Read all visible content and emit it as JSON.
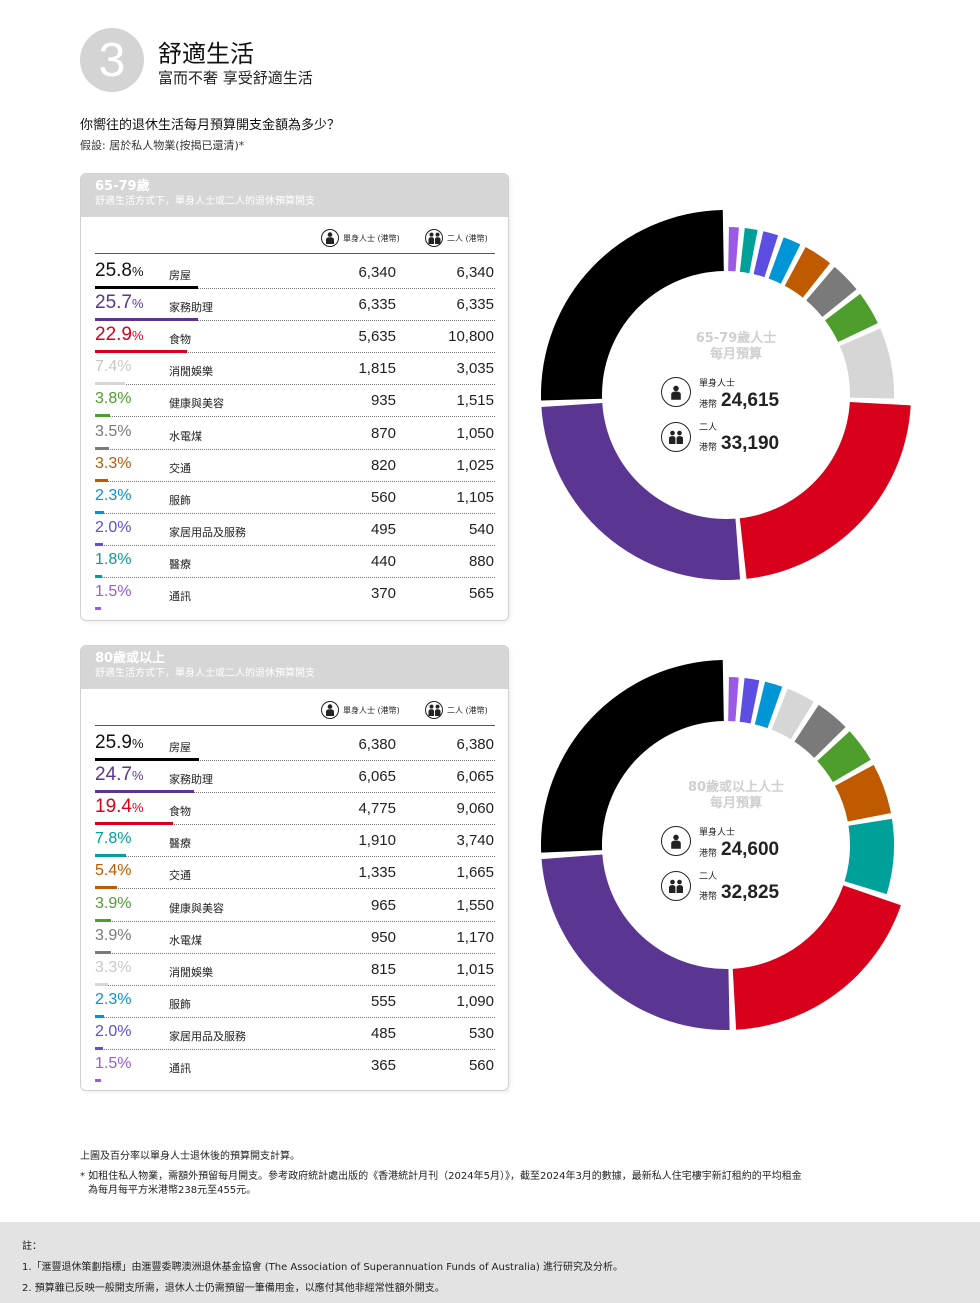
{
  "header": {
    "number": "3",
    "title": "舒適生活",
    "subtitle": "富而不奢 享受舒適生活"
  },
  "question": "你嚮往的退休生活每月預算開支金額為多少？",
  "assumption": "假設: 居於私人物業(按揭已還清)*",
  "column_headers": {
    "single": "單身人士 (港幣)",
    "couple": "二人 (港幣)"
  },
  "tables": [
    {
      "age": "65-79歲",
      "desc": "舒適生活方式下，單身人士或二人的退休預算開支",
      "rows": [
        {
          "pct": "25.8",
          "label": "房屋",
          "single": "6,340",
          "couple": "6,340",
          "color": "#000000",
          "frac": 0.258
        },
        {
          "pct": "25.7",
          "label": "家務助理",
          "single": "6,335",
          "couple": "6,335",
          "color": "#5a3591",
          "frac": 0.257
        },
        {
          "pct": "22.9",
          "label": "食物",
          "single": "5,635",
          "couple": "10,800",
          "color": "#d9001b",
          "frac": 0.229
        },
        {
          "pct": "7.4%",
          "label": "消閒娛樂",
          "single": "1,815",
          "couple": "3,035",
          "color": "#d6d6d6",
          "frac": 0.074
        },
        {
          "pct": "3.8%",
          "label": "健康與美容",
          "single": "935",
          "couple": "1,515",
          "color": "#4e9e2e",
          "frac": 0.038
        },
        {
          "pct": "3.5%",
          "label": "水電煤",
          "single": "870",
          "couple": "1,050",
          "color": "#7a7a7a",
          "frac": 0.035
        },
        {
          "pct": "3.3%",
          "label": "交通",
          "single": "820",
          "couple": "1,025",
          "color": "#c05a00",
          "frac": 0.033
        },
        {
          "pct": "2.3%",
          "label": "服飾",
          "single": "560",
          "couple": "1,105",
          "color": "#0096d6",
          "frac": 0.023
        },
        {
          "pct": "2.0%",
          "label": "家居用品及服務",
          "single": "495",
          "couple": "540",
          "color": "#5c4ee0",
          "frac": 0.02
        },
        {
          "pct": "1.8%",
          "label": "醫療",
          "single": "440",
          "couple": "880",
          "color": "#00a09a",
          "frac": 0.018
        },
        {
          "pct": "1.5%",
          "label": "通訊",
          "single": "370",
          "couple": "565",
          "color": "#9b59e6",
          "frac": 0.015
        }
      ]
    },
    {
      "age": "80歲或以上",
      "desc": "舒適生活方式下，單身人士或二人的退休預算開支",
      "rows": [
        {
          "pct": "25.9",
          "label": "房屋",
          "single": "6,380",
          "couple": "6,380",
          "color": "#000000",
          "frac": 0.259
        },
        {
          "pct": "24.7",
          "label": "家務助理",
          "single": "6,065",
          "couple": "6,065",
          "color": "#5a3591",
          "frac": 0.247
        },
        {
          "pct": "19.4",
          "label": "食物",
          "single": "4,775",
          "couple": "9,060",
          "color": "#d9001b",
          "frac": 0.194
        },
        {
          "pct": "7.8%",
          "label": "醫療",
          "single": "1,910",
          "couple": "3,740",
          "color": "#00a09a",
          "frac": 0.078
        },
        {
          "pct": "5.4%",
          "label": "交通",
          "single": "1,335",
          "couple": "1,665",
          "color": "#c05a00",
          "frac": 0.054
        },
        {
          "pct": "3.9%",
          "label": "健康與美容",
          "single": "965",
          "couple": "1,550",
          "color": "#4e9e2e",
          "frac": 0.039
        },
        {
          "pct": "3.9%",
          "label": "水電煤",
          "single": "950",
          "couple": "1,170",
          "color": "#7a7a7a",
          "frac": 0.039
        },
        {
          "pct": "3.3%",
          "label": "消閒娛樂",
          "single": "815",
          "couple": "1,015",
          "color": "#d6d6d6",
          "frac": 0.033
        },
        {
          "pct": "2.3%",
          "label": "服飾",
          "single": "555",
          "couple": "1,090",
          "color": "#0096d6",
          "frac": 0.023
        },
        {
          "pct": "2.0%",
          "label": "家居用品及服務",
          "single": "485",
          "couple": "530",
          "color": "#5c4ee0",
          "frac": 0.02
        },
        {
          "pct": "1.5%",
          "label": "通訊",
          "single": "365",
          "couple": "560",
          "color": "#9b59e6",
          "frac": 0.015
        }
      ]
    }
  ],
  "donuts": [
    {
      "title_line1": "65-79歲人士",
      "title_line2": "每月預算",
      "single_label": "單身人士",
      "couple_label": "二人",
      "currency": "港幣",
      "single_total": "24,615",
      "couple_total": "33,190"
    },
    {
      "title_line1": "80歲或以上人士",
      "title_line2": "每月預算",
      "single_label": "單身人士",
      "couple_label": "二人",
      "currency": "港幣",
      "single_total": "24,600",
      "couple_total": "32,825"
    }
  ],
  "chart_data": [
    {
      "type": "pie",
      "title": "65-79歲人士 每月預算",
      "categories": [
        "房屋",
        "家務助理",
        "食物",
        "消閒娛樂",
        "健康與美容",
        "水電煤",
        "交通",
        "服飾",
        "家居用品及服務",
        "醫療",
        "通訊"
      ],
      "values": [
        6340,
        6335,
        5635,
        1815,
        935,
        870,
        820,
        560,
        495,
        440,
        370
      ],
      "percentages": [
        25.8,
        25.7,
        22.9,
        7.4,
        3.8,
        3.5,
        3.3,
        2.3,
        2.0,
        1.8,
        1.5
      ],
      "colors": [
        "#000000",
        "#5a3591",
        "#d9001b",
        "#d6d6d6",
        "#4e9e2e",
        "#7a7a7a",
        "#c05a00",
        "#0096d6",
        "#5c4ee0",
        "#00a09a",
        "#9b59e6"
      ]
    },
    {
      "type": "pie",
      "title": "80歲或以上人士 每月預算",
      "categories": [
        "房屋",
        "家務助理",
        "食物",
        "醫療",
        "交通",
        "健康與美容",
        "水電煤",
        "消閒娛樂",
        "服飾",
        "家居用品及服務",
        "通訊"
      ],
      "values": [
        6380,
        6065,
        4775,
        1910,
        1335,
        965,
        950,
        815,
        555,
        485,
        365
      ],
      "percentages": [
        25.9,
        24.7,
        19.4,
        7.8,
        5.4,
        3.9,
        3.9,
        3.3,
        2.3,
        2.0,
        1.5
      ],
      "colors": [
        "#000000",
        "#5a3591",
        "#d9001b",
        "#00a09a",
        "#c05a00",
        "#4e9e2e",
        "#7a7a7a",
        "#d6d6d6",
        "#0096d6",
        "#5c4ee0",
        "#9b59e6"
      ]
    }
  ],
  "footnotes": {
    "line1": "上圖及百分率以單身人士退休後的預算開支計算。",
    "line2": "* 如租住私人物業，需額外預留每月開支。參考政府統計處出版的《香港統計月刊（2024年5月）》，截至2024年3月的數據，最新私人住宅樓宇新訂租約的平均租金",
    "line3": "為每月每平方米港幣238元至455元。"
  },
  "notes": {
    "heading": "註：",
    "n1": "1.「滙豐退休策劃指標」由滙豐委聘澳洲退休基金協會 (The Association of Superannuation Funds of Australia) 進行研究及分析。",
    "n2": "2. 預算雖已反映一般開支所需，退休人士仍需預留一筆備用金，以應付其他非經常性額外開支。"
  }
}
